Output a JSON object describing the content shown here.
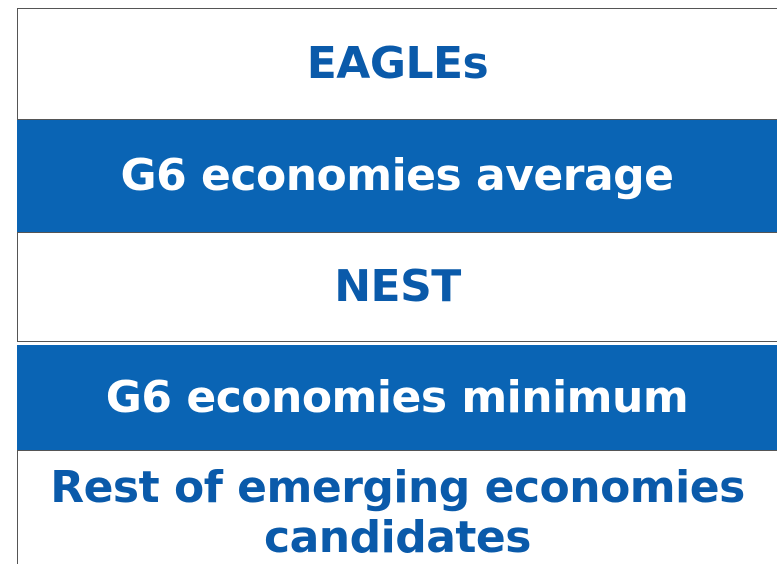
{
  "rows": [
    {
      "label": "EAGLEs"
    },
    {
      "label": "G6 economies average"
    },
    {
      "label": "NEST"
    },
    {
      "label": "G6 economies minimum"
    },
    {
      "label": "Rest of emerging economies candidates"
    }
  ]
}
